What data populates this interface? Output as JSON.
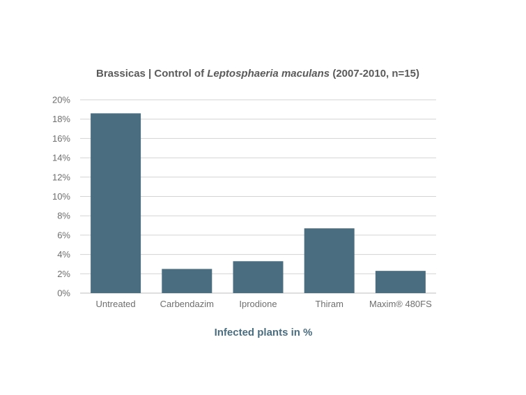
{
  "chart_data": {
    "type": "bar",
    "title_parts": {
      "before": "Brassicas | Control of ",
      "italic": "Leptosphaeria maculans",
      "after": " (2007-2010, n=15)"
    },
    "categories": [
      "Untreated",
      "Carbendazim",
      "Iprodione",
      "Thiram",
      "Maxim® 480FS"
    ],
    "values": [
      18.6,
      2.5,
      3.3,
      6.7,
      2.3
    ],
    "y_ticks": [
      "0%",
      "2%",
      "4%",
      "6%",
      "8%",
      "10%",
      "12%",
      "14%",
      "16%",
      "18%",
      "20%"
    ],
    "ylim": [
      0,
      20
    ],
    "xlabel": "Infected plants in %",
    "grid": true,
    "bar_color": "#4a6d80"
  }
}
